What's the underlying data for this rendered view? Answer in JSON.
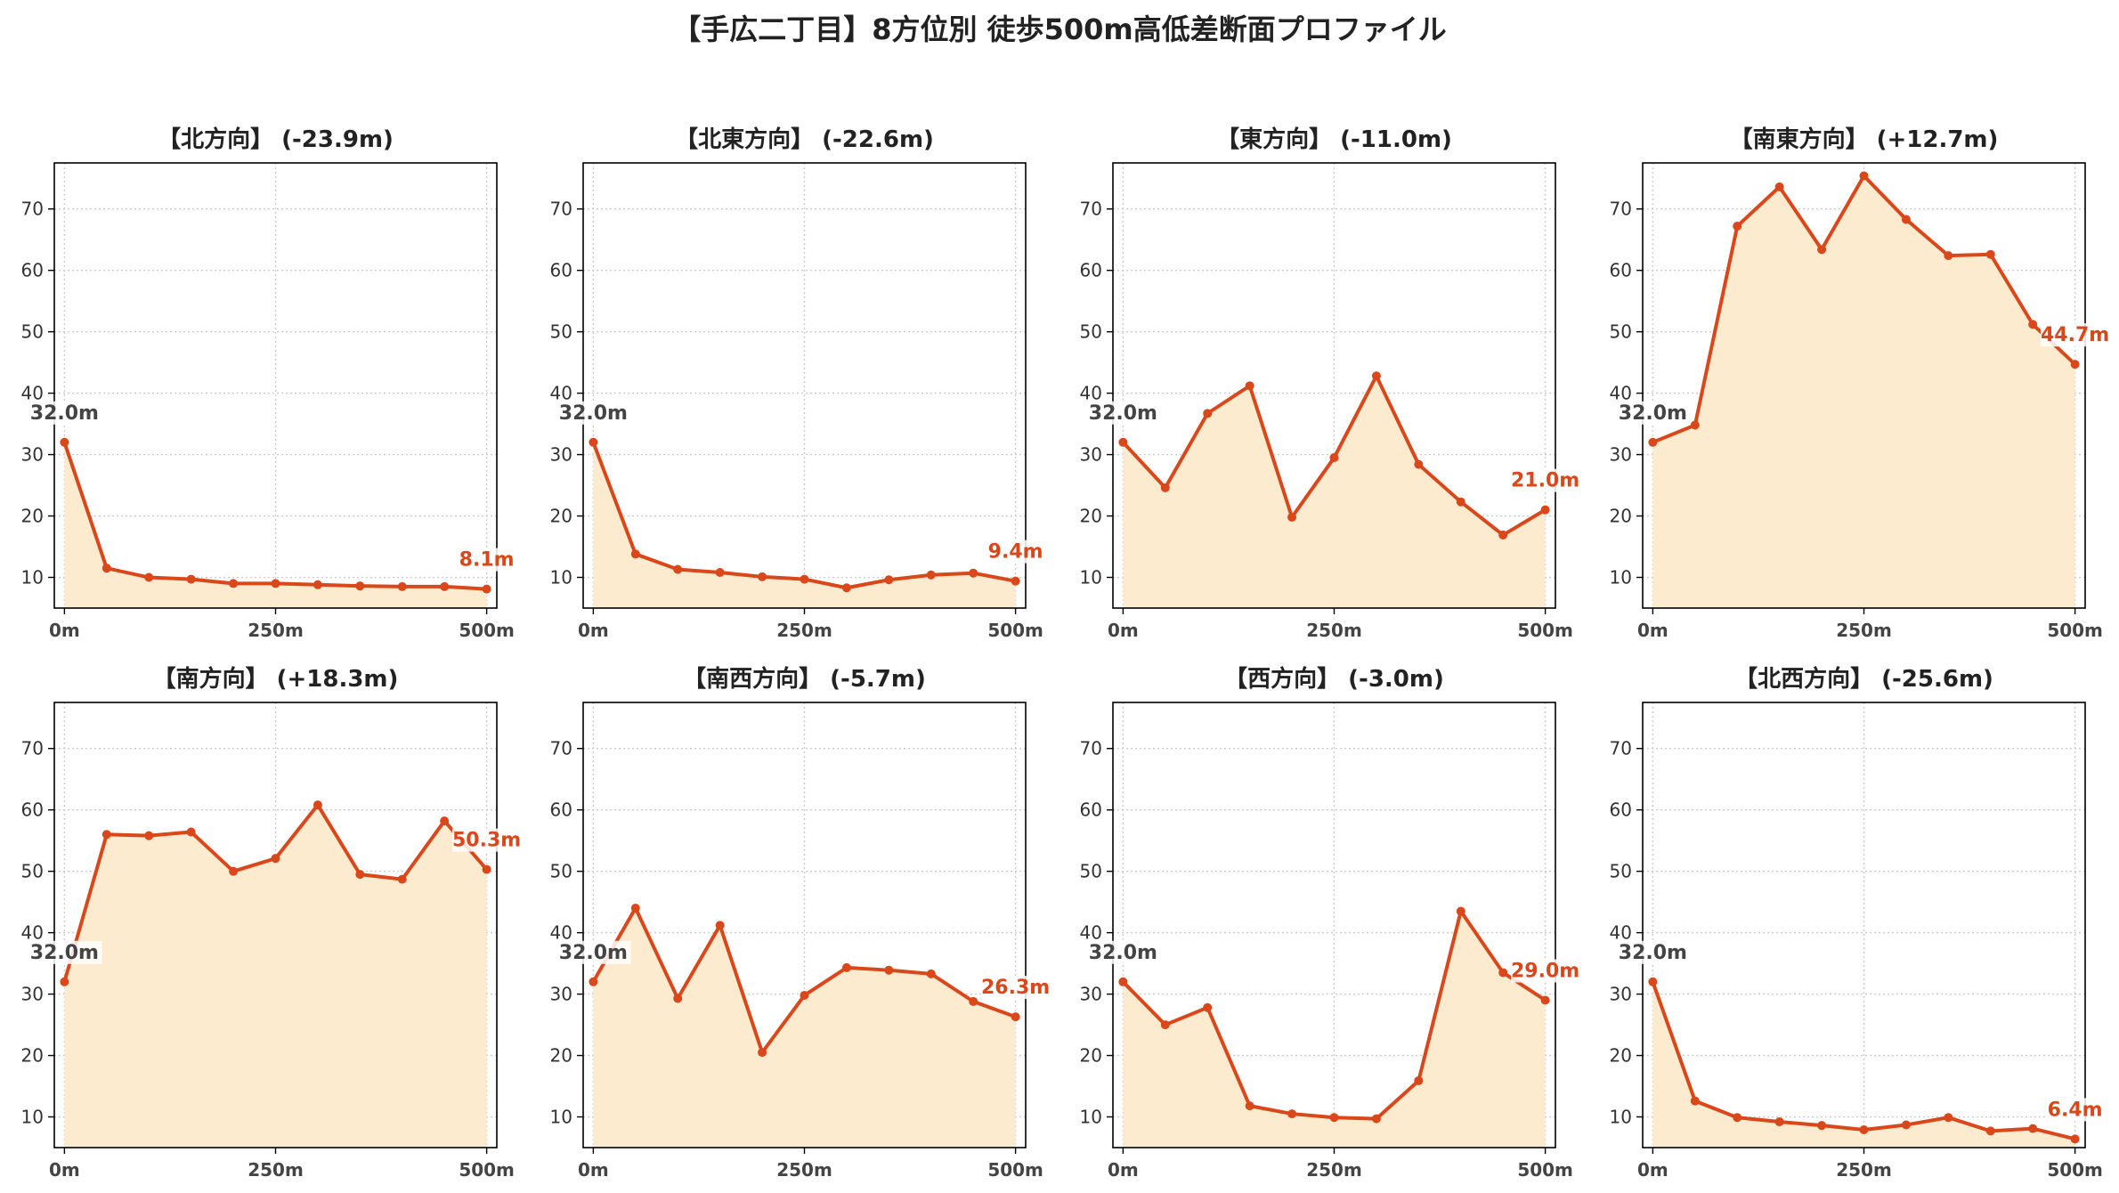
{
  "title": "【手広二丁目】8方位別 徒歩500m高低差断面プロファイル",
  "colors": {
    "line": "#d9471a",
    "fill": "#fdebd0",
    "grid": "#cccccc",
    "start_label": "#444444",
    "end_label": "#d9471a"
  },
  "chart_data": [
    {
      "type": "area",
      "title": "【北方向】 (-23.9m)",
      "x": [
        0,
        50,
        100,
        150,
        200,
        250,
        300,
        350,
        400,
        450,
        500
      ],
      "series": [
        {
          "values": [
            32.0,
            11.5,
            10.0,
            9.7,
            9.0,
            9.0,
            8.8,
            8.6,
            8.5,
            8.5,
            8.1
          ]
        }
      ],
      "start_label": "32.0m",
      "end_label": "8.1m",
      "xticks": [
        "0m",
        "250m",
        "500m"
      ],
      "yticks": [
        10,
        20,
        30,
        40,
        50,
        60,
        70
      ],
      "xlim": [
        -12,
        512
      ],
      "ylim": [
        5,
        77.5
      ],
      "grid": true
    },
    {
      "type": "area",
      "title": "【北東方向】 (-22.6m)",
      "x": [
        0,
        50,
        100,
        150,
        200,
        250,
        300,
        350,
        400,
        450,
        500
      ],
      "series": [
        {
          "values": [
            32.0,
            13.8,
            11.3,
            10.8,
            10.1,
            9.7,
            8.3,
            9.6,
            10.4,
            10.7,
            9.4
          ]
        }
      ],
      "start_label": "32.0m",
      "end_label": "9.4m",
      "xticks": [
        "0m",
        "250m",
        "500m"
      ],
      "yticks": [
        10,
        20,
        30,
        40,
        50,
        60,
        70
      ],
      "xlim": [
        -12,
        512
      ],
      "ylim": [
        5,
        77.5
      ],
      "grid": true
    },
    {
      "type": "area",
      "title": "【東方向】 (-11.0m)",
      "x": [
        0,
        50,
        100,
        150,
        200,
        250,
        300,
        350,
        400,
        450,
        500
      ],
      "series": [
        {
          "values": [
            32.0,
            24.6,
            36.7,
            41.2,
            19.8,
            29.5,
            42.8,
            28.4,
            22.3,
            16.9,
            21.0
          ]
        }
      ],
      "start_label": "32.0m",
      "end_label": "21.0m",
      "xticks": [
        "0m",
        "250m",
        "500m"
      ],
      "yticks": [
        10,
        20,
        30,
        40,
        50,
        60,
        70
      ],
      "xlim": [
        -12,
        512
      ],
      "ylim": [
        5,
        77.5
      ],
      "grid": true
    },
    {
      "type": "area",
      "title": "【南東方向】 (+12.7m)",
      "x": [
        0,
        50,
        100,
        150,
        200,
        250,
        300,
        350,
        400,
        450,
        500
      ],
      "series": [
        {
          "values": [
            32.0,
            34.8,
            67.2,
            73.6,
            63.4,
            75.4,
            68.3,
            62.4,
            62.6,
            51.2,
            44.7
          ]
        }
      ],
      "start_label": "32.0m",
      "end_label": "44.7m",
      "xticks": [
        "0m",
        "250m",
        "500m"
      ],
      "yticks": [
        10,
        20,
        30,
        40,
        50,
        60,
        70
      ],
      "xlim": [
        -12,
        512
      ],
      "ylim": [
        5,
        77.5
      ],
      "grid": true
    },
    {
      "type": "area",
      "title": "【南方向】 (+18.3m)",
      "x": [
        0,
        50,
        100,
        150,
        200,
        250,
        300,
        350,
        400,
        450,
        500
      ],
      "series": [
        {
          "values": [
            32.0,
            56.0,
            55.8,
            56.4,
            50.0,
            52.1,
            60.8,
            49.5,
            48.7,
            58.2,
            50.3
          ]
        }
      ],
      "start_label": "32.0m",
      "end_label": "50.3m",
      "xticks": [
        "0m",
        "250m",
        "500m"
      ],
      "yticks": [
        10,
        20,
        30,
        40,
        50,
        60,
        70
      ],
      "xlim": [
        -12,
        512
      ],
      "ylim": [
        5,
        77.5
      ],
      "grid": true
    },
    {
      "type": "area",
      "title": "【南西方向】 (-5.7m)",
      "x": [
        0,
        50,
        100,
        150,
        200,
        250,
        300,
        350,
        400,
        450,
        500
      ],
      "series": [
        {
          "values": [
            32.0,
            44.0,
            29.3,
            41.2,
            20.5,
            29.8,
            34.3,
            33.9,
            33.3,
            28.8,
            26.3
          ]
        }
      ],
      "start_label": "32.0m",
      "end_label": "26.3m",
      "xticks": [
        "0m",
        "250m",
        "500m"
      ],
      "yticks": [
        10,
        20,
        30,
        40,
        50,
        60,
        70
      ],
      "xlim": [
        -12,
        512
      ],
      "ylim": [
        5,
        77.5
      ],
      "grid": true
    },
    {
      "type": "area",
      "title": "【西方向】 (-3.0m)",
      "x": [
        0,
        50,
        100,
        150,
        200,
        250,
        300,
        350,
        400,
        450,
        500
      ],
      "series": [
        {
          "values": [
            32.0,
            25.0,
            27.8,
            11.8,
            10.5,
            9.9,
            9.7,
            15.9,
            43.5,
            33.5,
            29.0
          ]
        }
      ],
      "start_label": "32.0m",
      "end_label": "29.0m",
      "xticks": [
        "0m",
        "250m",
        "500m"
      ],
      "yticks": [
        10,
        20,
        30,
        40,
        50,
        60,
        70
      ],
      "xlim": [
        -12,
        512
      ],
      "ylim": [
        5,
        77.5
      ],
      "grid": true
    },
    {
      "type": "area",
      "title": "【北西方向】 (-25.6m)",
      "x": [
        0,
        50,
        100,
        150,
        200,
        250,
        300,
        350,
        400,
        450,
        500
      ],
      "series": [
        {
          "values": [
            32.0,
            12.6,
            9.9,
            9.2,
            8.6,
            7.9,
            8.7,
            9.9,
            7.7,
            8.1,
            6.4
          ]
        }
      ],
      "start_label": "32.0m",
      "end_label": "6.4m",
      "xticks": [
        "0m",
        "250m",
        "500m"
      ],
      "yticks": [
        10,
        20,
        30,
        40,
        50,
        60,
        70
      ],
      "xlim": [
        -12,
        512
      ],
      "ylim": [
        5,
        77.5
      ],
      "grid": true
    }
  ]
}
